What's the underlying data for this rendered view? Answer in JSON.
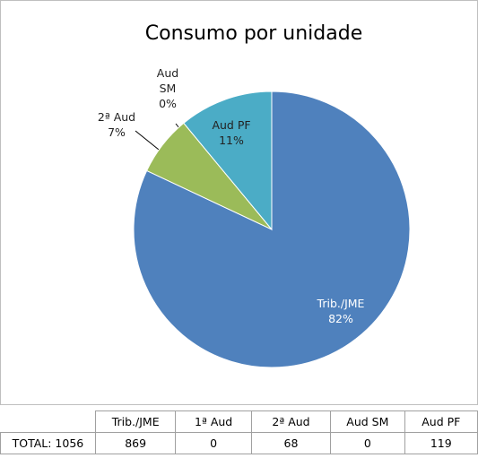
{
  "chart_data": {
    "type": "pie",
    "title": "Consumo por unidade",
    "categories": [
      "Trib./JME",
      "2ª Aud",
      "Aud SM",
      "Aud PF"
    ],
    "values": [
      82,
      7,
      0,
      11
    ],
    "value_labels": [
      "82%",
      "7%",
      "0%",
      "11%"
    ],
    "colors": [
      "#4f81bd",
      "#9bbb59",
      "#8064a2",
      "#4bacc6"
    ]
  },
  "table": {
    "headers": [
      "Trib./JME",
      "1ª Aud",
      "2ª Aud",
      "Aud SM",
      "Aud PF"
    ],
    "rows": [
      [
        "TOTAL: 1056",
        869,
        0,
        68,
        0,
        119
      ]
    ]
  }
}
